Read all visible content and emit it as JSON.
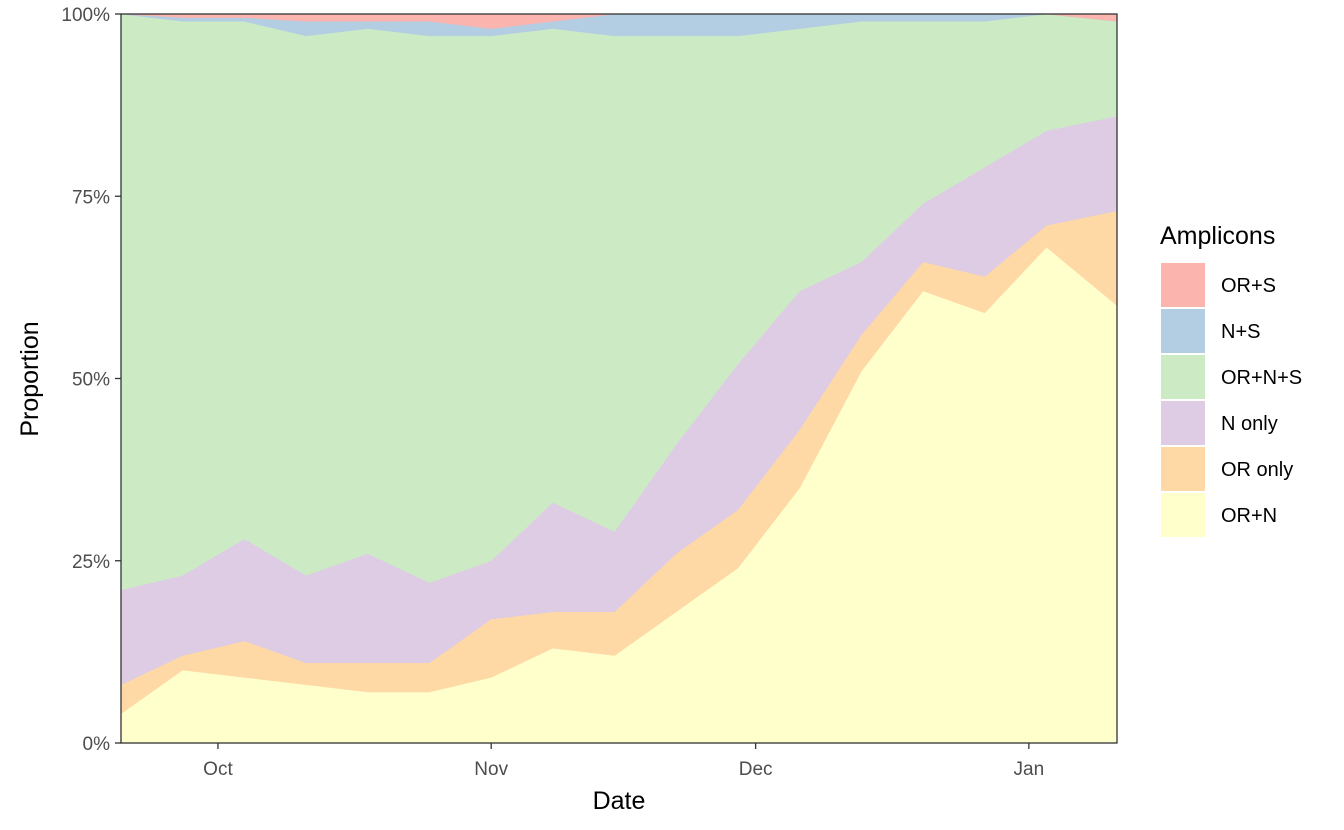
{
  "chart_data": {
    "type": "area",
    "stacked": true,
    "normalized": true,
    "title": "",
    "xlabel": "Date",
    "ylabel": "Proportion",
    "ylim": [
      0,
      1
    ],
    "x_range": [
      "2020-09-20",
      "2021-01-11"
    ],
    "x": [
      "2020-09-20",
      "2020-09-27",
      "2020-10-04",
      "2020-10-11",
      "2020-10-18",
      "2020-10-25",
      "2020-11-01",
      "2020-11-08",
      "2020-11-15",
      "2020-11-22",
      "2020-11-29",
      "2020-12-06",
      "2020-12-13",
      "2020-12-20",
      "2020-12-27",
      "2021-01-03",
      "2021-01-11"
    ],
    "x_ticks": [
      {
        "label": "Oct",
        "date": "2020-10-01"
      },
      {
        "label": "Nov",
        "date": "2020-11-01"
      },
      {
        "label": "Dec",
        "date": "2020-12-01"
      },
      {
        "label": "Jan",
        "date": "2021-01-01"
      }
    ],
    "y_ticks": [
      {
        "label": "0%",
        "value": 0
      },
      {
        "label": "25%",
        "value": 0.25
      },
      {
        "label": "50%",
        "value": 0.5
      },
      {
        "label": "75%",
        "value": 0.75
      },
      {
        "label": "100%",
        "value": 1
      }
    ],
    "legend": {
      "title": "Amplicons",
      "position": "right"
    },
    "grid": false,
    "series": [
      {
        "name": "OR+N",
        "color": "#FFFFCC",
        "values": [
          0.04,
          0.1,
          0.09,
          0.08,
          0.07,
          0.07,
          0.09,
          0.13,
          0.12,
          0.18,
          0.24,
          0.35,
          0.51,
          0.62,
          0.59,
          0.68,
          0.6
        ]
      },
      {
        "name": "OR only",
        "color": "#FED9A6",
        "values": [
          0.04,
          0.02,
          0.05,
          0.03,
          0.04,
          0.04,
          0.08,
          0.05,
          0.06,
          0.08,
          0.08,
          0.08,
          0.05,
          0.04,
          0.05,
          0.03,
          0.13
        ]
      },
      {
        "name": "N only",
        "color": "#DECBE4",
        "values": [
          0.13,
          0.11,
          0.14,
          0.12,
          0.15,
          0.11,
          0.08,
          0.15,
          0.11,
          0.15,
          0.2,
          0.19,
          0.1,
          0.08,
          0.15,
          0.13,
          0.13
        ]
      },
      {
        "name": "OR+N+S",
        "color": "#CCEBC5",
        "values": [
          0.79,
          0.76,
          0.71,
          0.74,
          0.72,
          0.75,
          0.72,
          0.65,
          0.68,
          0.56,
          0.45,
          0.36,
          0.33,
          0.25,
          0.2,
          0.16,
          0.13
        ]
      },
      {
        "name": "N+S",
        "color": "#B3CDE3",
        "values": [
          0.0,
          0.005,
          0.005,
          0.02,
          0.01,
          0.02,
          0.01,
          0.01,
          0.03,
          0.03,
          0.03,
          0.02,
          0.01,
          0.01,
          0.01,
          0.0,
          0.0
        ]
      },
      {
        "name": "OR+S",
        "color": "#FBB4AE",
        "values": [
          0.0,
          0.005,
          0.005,
          0.01,
          0.01,
          0.01,
          0.02,
          0.01,
          0.0,
          0.0,
          0.0,
          0.0,
          0.0,
          0.0,
          0.0,
          0.0,
          0.01
        ]
      }
    ],
    "legend_order": [
      "OR+S",
      "N+S",
      "OR+N+S",
      "N only",
      "OR only",
      "OR+N"
    ]
  }
}
